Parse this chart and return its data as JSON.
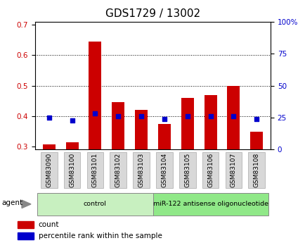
{
  "title": "GDS1729 / 13002",
  "samples": [
    "GSM83090",
    "GSM83100",
    "GSM83101",
    "GSM83102",
    "GSM83103",
    "GSM83104",
    "GSM83105",
    "GSM83106",
    "GSM83107",
    "GSM83108"
  ],
  "count_values": [
    0.307,
    0.313,
    0.645,
    0.445,
    0.42,
    0.373,
    0.46,
    0.468,
    0.5,
    0.348
  ],
  "percentile_values": [
    25,
    23,
    28,
    26,
    26,
    24,
    26,
    26,
    26,
    24
  ],
  "left_ylim": [
    0.29,
    0.71
  ],
  "left_yticks": [
    0.3,
    0.4,
    0.5,
    0.6,
    0.7
  ],
  "right_ylim": [
    0,
    100
  ],
  "right_yticks": [
    0,
    25,
    50,
    75,
    100
  ],
  "right_yticklabels": [
    "0",
    "25",
    "50",
    "75",
    "100%"
  ],
  "count_color": "#cc0000",
  "percentile_color": "#0000cc",
  "bar_width": 0.55,
  "groups": [
    {
      "label": "control",
      "indices": [
        0,
        1,
        2,
        3,
        4
      ],
      "color": "#c8f0c0"
    },
    {
      "label": "miR-122 antisense oligonucleotide",
      "indices": [
        5,
        6,
        7,
        8,
        9
      ],
      "color": "#90e888"
    }
  ],
  "agent_label": "agent",
  "legend_count_label": "count",
  "legend_percentile_label": "percentile rank within the sample",
  "grid_yticks": [
    0.4,
    0.5,
    0.6
  ],
  "title_fontsize": 11,
  "tick_fontsize": 7.5,
  "background_color": "#ffffff"
}
